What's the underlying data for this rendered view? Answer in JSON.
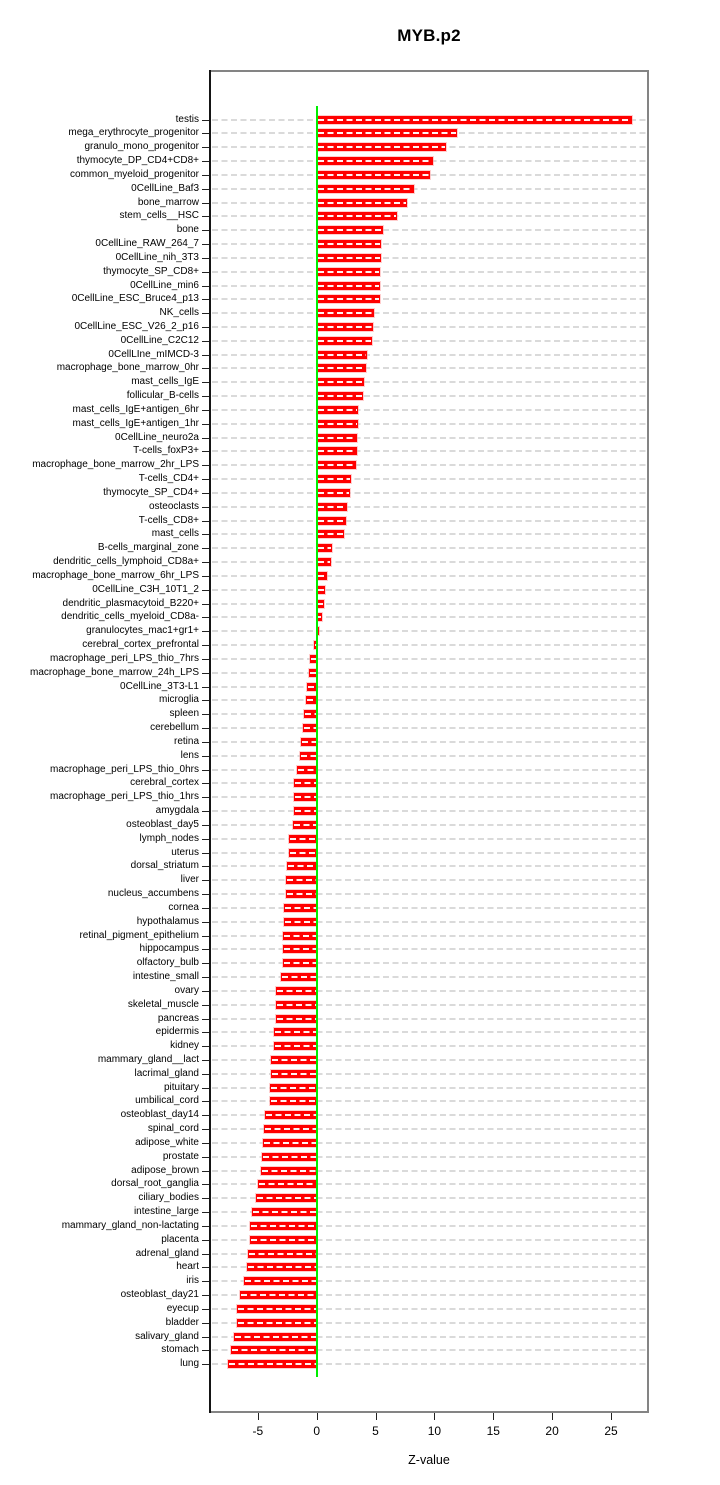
{
  "colors": {
    "bar": "#ff0000",
    "reference_line": "#00ee00",
    "gridline": "#dadada",
    "plot_border": "#848484",
    "axis": "#151515",
    "background": "#ffffff"
  },
  "chart_data": {
    "type": "bar",
    "orientation": "horizontal",
    "title": "MYB.p2",
    "xlabel": "Z-value",
    "ylabel": "",
    "xlim": [
      -9.1,
      28.2
    ],
    "x_ticks": [
      -5,
      0,
      5,
      10,
      15,
      20,
      25
    ],
    "grid": "row-guides-dashed",
    "legend": "none",
    "reference_line_x": 0,
    "categories": [
      "testis",
      "mega_erythrocyte_progenitor",
      "granulo_mono_progenitor",
      "thymocyte_DP_CD4+CD8+",
      "common_myeloid_progenitor",
      "0CellLine_Baf3",
      "bone_marrow",
      "stem_cells__HSC",
      "bone",
      "0CellLine_RAW_264_7",
      "0CellLine_nih_3T3",
      "thymocyte_SP_CD8+",
      "0CellLine_min6",
      "0CellLine_ESC_Bruce4_p13",
      "NK_cells",
      "0CellLine_ESC_V26_2_p16",
      "0CellLine_C2C12",
      "0CellLIne_mIMCD-3",
      "macrophage_bone_marrow_0hr",
      "mast_cells_IgE",
      "follicular_B-cells",
      "mast_cells_IgE+antigen_6hr",
      "mast_cells_IgE+antigen_1hr",
      "0CellLine_neuro2a",
      "T-cells_foxP3+",
      "macrophage_bone_marrow_2hr_LPS",
      "T-cells_CD4+",
      "thymocyte_SP_CD4+",
      "osteoclasts",
      "T-cells_CD8+",
      "mast_cells",
      "B-cells_marginal_zone",
      "dendritic_cells_lymphoid_CD8a+",
      "macrophage_bone_marrow_6hr_LPS",
      "0CellLine_C3H_10T1_2",
      "dendritic_plasmacytoid_B220+",
      "dendritic_cells_myeloid_CD8a-",
      "granulocytes_mac1+gr1+",
      "cerebral_cortex_prefrontal",
      "macrophage_peri_LPS_thio_7hrs",
      "macrophage_bone_marrow_24h_LPS",
      "0CellLine_3T3-L1",
      "microglia",
      "spleen",
      "cerebellum",
      "retina",
      "lens",
      "macrophage_peri_LPS_thio_0hrs",
      "cerebral_cortex",
      "macrophage_peri_LPS_thio_1hrs",
      "amygdala",
      "osteoblast_day5",
      "lymph_nodes",
      "uterus",
      "dorsal_striatum",
      "liver",
      "nucleus_accumbens",
      "cornea",
      "hypothalamus",
      "retinal_pigment_epithelium",
      "hippocampus",
      "olfactory_bulb",
      "intestine_small",
      "ovary",
      "skeletal_muscle",
      "pancreas",
      "epidermis",
      "kidney",
      "mammary_gland__lact",
      "lacrimal_gland",
      "pituitary",
      "umbilical_cord",
      "osteoblast_day14",
      "spinal_cord",
      "adipose_white",
      "prostate",
      "adipose_brown",
      "dorsal_root_ganglia",
      "ciliary_bodies",
      "intestine_large",
      "mammary_gland_non-lactating",
      "placenta",
      "adrenal_gland",
      "heart",
      "iris",
      "osteoblast_day21",
      "eyecup",
      "bladder",
      "salivary_gland",
      "stomach",
      "lung"
    ],
    "values": [
      26.8,
      11.9,
      11.0,
      9.9,
      9.6,
      8.3,
      7.7,
      6.8,
      5.6,
      5.5,
      5.45,
      5.4,
      5.4,
      5.35,
      4.9,
      4.75,
      4.7,
      4.3,
      4.2,
      4.0,
      3.9,
      3.55,
      3.5,
      3.45,
      3.4,
      3.35,
      2.9,
      2.8,
      2.6,
      2.5,
      2.3,
      1.3,
      1.2,
      0.9,
      0.7,
      0.6,
      0.45,
      0.2,
      -0.25,
      -0.6,
      -0.7,
      -0.85,
      -0.9,
      -1.05,
      -1.15,
      -1.35,
      -1.4,
      -1.7,
      -1.9,
      -1.95,
      -1.95,
      -2.0,
      -2.35,
      -2.4,
      -2.5,
      -2.6,
      -2.65,
      -2.8,
      -2.8,
      -2.85,
      -2.9,
      -2.9,
      -3.0,
      -3.45,
      -3.45,
      -3.5,
      -3.6,
      -3.65,
      -3.85,
      -3.9,
      -3.95,
      -3.95,
      -4.4,
      -4.45,
      -4.55,
      -4.65,
      -4.7,
      -4.95,
      -5.15,
      -5.5,
      -5.65,
      -5.7,
      -5.85,
      -5.9,
      -6.15,
      -6.55,
      -6.75,
      -6.8,
      -7.0,
      -7.3,
      -7.55
    ]
  }
}
